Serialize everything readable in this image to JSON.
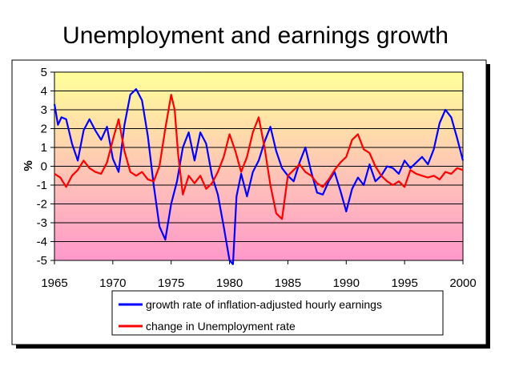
{
  "title": "Unemployment and earnings growth",
  "chart_data": {
    "type": "line",
    "title": "Unemployment and earnings growth",
    "xlabel": "",
    "ylabel": "%",
    "xlim": [
      1965,
      2000
    ],
    "ylim": [
      -5,
      5
    ],
    "x_ticks": [
      1965,
      1970,
      1975,
      1980,
      1985,
      1990,
      1995,
      2000
    ],
    "y_ticks": [
      5,
      4,
      3,
      2,
      1,
      0,
      -1,
      -2,
      -3,
      -4,
      -5
    ],
    "grid": true,
    "legend_position": "bottom",
    "series": [
      {
        "name": "growth rate of inflation-adjusted hourly earnings",
        "color": "#0000ff",
        "x": [
          1965,
          1965.3,
          1965.6,
          1966,
          1966.5,
          1967,
          1967.5,
          1968,
          1968.5,
          1969,
          1969.5,
          1970,
          1970.5,
          1971,
          1971.5,
          1972,
          1972.5,
          1973,
          1973.5,
          1974,
          1974.5,
          1975,
          1975.5,
          1976,
          1976.5,
          1977,
          1977.5,
          1978,
          1978.5,
          1979,
          1979.5,
          1980,
          1980.3,
          1980.6,
          1981,
          1981.5,
          1982,
          1982.5,
          1983,
          1983.5,
          1984,
          1984.5,
          1985,
          1985.5,
          1986,
          1986.5,
          1987,
          1987.5,
          1988,
          1988.5,
          1989,
          1989.5,
          1990,
          1990.5,
          1991,
          1991.5,
          1992,
          1992.5,
          1993,
          1993.5,
          1994,
          1994.5,
          1995,
          1995.5,
          1996,
          1996.5,
          1997,
          1997.5,
          1998,
          1998.5,
          1999,
          1999.5,
          2000
        ],
        "values": [
          3.3,
          2.2,
          2.6,
          2.5,
          1.2,
          0.3,
          1.9,
          2.5,
          1.9,
          1.4,
          2.1,
          0.4,
          -0.3,
          2.2,
          3.8,
          4.1,
          3.5,
          1.6,
          -1.0,
          -3.2,
          -3.9,
          -2.0,
          -0.8,
          1.0,
          1.8,
          0.3,
          1.8,
          1.2,
          -0.5,
          -1.5,
          -3.2,
          -5.0,
          -5.2,
          -1.6,
          -0.4,
          -1.6,
          -0.3,
          0.3,
          1.3,
          2.1,
          0.8,
          -0.1,
          -0.5,
          -0.8,
          0.2,
          1.0,
          -0.3,
          -1.4,
          -1.5,
          -0.8,
          -0.3,
          -1.3,
          -2.4,
          -1.2,
          -0.6,
          -1.0,
          0.1,
          -0.8,
          -0.5,
          0.0,
          -0.1,
          -0.4,
          0.3,
          -0.1,
          0.2,
          0.5,
          0.1,
          0.9,
          2.3,
          3.0,
          2.6,
          1.5,
          0.3
        ]
      },
      {
        "name": "change in Unemployment rate",
        "color": "#ff0000",
        "x": [
          1965,
          1965.5,
          1966,
          1966.5,
          1967,
          1967.5,
          1968,
          1968.5,
          1969,
          1969.5,
          1970,
          1970.5,
          1971,
          1971.5,
          1972,
          1972.5,
          1973,
          1973.5,
          1974,
          1974.5,
          1975,
          1975.3,
          1975.6,
          1976,
          1976.5,
          1977,
          1977.5,
          1978,
          1978.5,
          1979,
          1979.5,
          1980,
          1980.5,
          1981,
          1981.5,
          1982,
          1982.5,
          1983,
          1983.5,
          1984,
          1984.5,
          1985,
          1985.5,
          1986,
          1986.5,
          1987,
          1987.5,
          1988,
          1988.5,
          1989,
          1989.5,
          1990,
          1990.5,
          1991,
          1991.5,
          1992,
          1992.5,
          1993,
          1993.5,
          1994,
          1994.5,
          1995,
          1995.5,
          1996,
          1996.5,
          1997,
          1997.5,
          1998,
          1998.5,
          1999,
          1999.5,
          2000
        ],
        "values": [
          -0.4,
          -0.6,
          -1.1,
          -0.5,
          -0.2,
          0.3,
          -0.1,
          -0.3,
          -0.4,
          0.2,
          1.4,
          2.5,
          0.8,
          -0.3,
          -0.5,
          -0.3,
          -0.7,
          -0.8,
          0.0,
          2.0,
          3.8,
          3.0,
          0.6,
          -1.5,
          -0.5,
          -0.9,
          -0.5,
          -1.2,
          -0.9,
          -0.3,
          0.5,
          1.7,
          0.8,
          -0.3,
          0.5,
          1.8,
          2.6,
          1.0,
          -1.0,
          -2.5,
          -2.8,
          -0.5,
          -0.2,
          0.1,
          -0.3,
          -0.5,
          -0.9,
          -1.1,
          -0.7,
          -0.2,
          0.2,
          0.5,
          1.4,
          1.7,
          0.9,
          0.7,
          0.0,
          -0.5,
          -0.8,
          -1.0,
          -0.8,
          -1.1,
          -0.2,
          -0.4,
          -0.5,
          -0.6,
          -0.5,
          -0.7,
          -0.3,
          -0.4,
          -0.1,
          -0.2
        ]
      }
    ]
  }
}
